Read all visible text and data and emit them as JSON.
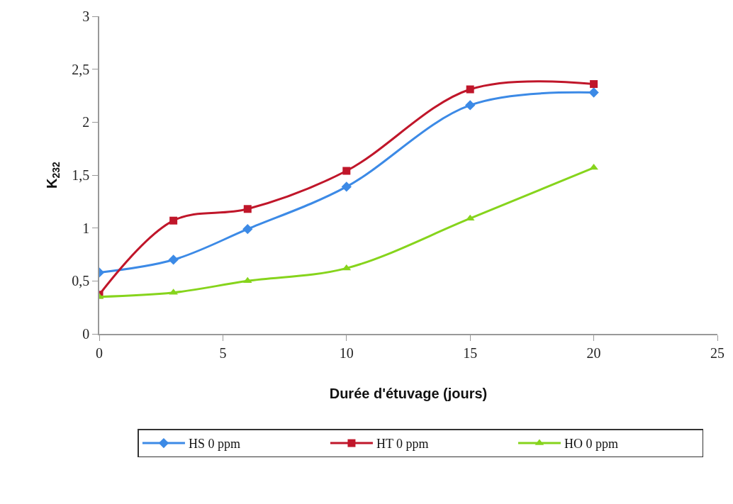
{
  "chart_data": {
    "type": "line",
    "xlabel": "Durée d'étuvage (jours)",
    "ylabel": "K$_{232}$",
    "x": [
      0,
      3,
      6,
      10,
      15,
      20
    ],
    "series": [
      {
        "name": "HS 0 ppm",
        "color": "#3c8ae6",
        "marker": "diamond",
        "values": [
          0.58,
          0.7,
          0.99,
          1.39,
          2.16,
          2.28
        ]
      },
      {
        "name": "HT 0 ppm",
        "color": "#c0162a",
        "marker": "square",
        "values": [
          0.37,
          1.07,
          1.18,
          1.54,
          2.31,
          2.36
        ]
      },
      {
        "name": "HO 0 ppm",
        "color": "#86d41c",
        "marker": "triangle",
        "values": [
          0.35,
          0.39,
          0.5,
          0.62,
          1.09,
          1.57
        ]
      }
    ],
    "xlim": [
      0,
      25
    ],
    "xticks": [
      0,
      5,
      10,
      15,
      20,
      25
    ],
    "ylim": [
      0,
      3
    ],
    "yticks": [
      0,
      {
        "value": 0.5,
        "label": "0,5"
      },
      1,
      {
        "value": 1.5,
        "label": "1,5"
      },
      2,
      {
        "value": 2.5,
        "label": "2,5"
      },
      3
    ],
    "legend": "bottom",
    "line_style": "solid"
  }
}
